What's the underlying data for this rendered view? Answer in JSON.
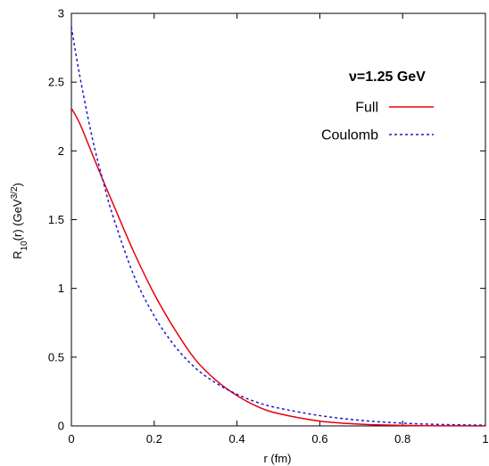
{
  "chart_data": {
    "type": "line",
    "title": "",
    "annotation": "ν=1.25 GeV",
    "xlabel": "r (fm)",
    "ylabel": {
      "main": "R",
      "sub": "10",
      "mid": "(r) (GeV",
      "sup": "3/2",
      "end": ")"
    },
    "xlim": [
      0,
      1
    ],
    "ylim": [
      0,
      3
    ],
    "xticks": [
      "0",
      "0.2",
      "0.4",
      "0.6",
      "0.8",
      "1"
    ],
    "yticks": [
      "0",
      "0.5",
      "1",
      "1.5",
      "2",
      "2.5",
      "3"
    ],
    "grid": false,
    "legend_position": "top-right",
    "series": [
      {
        "name": "Full",
        "color": "#e8000b",
        "dash": "solid",
        "x": [
          0,
          0.02,
          0.05,
          0.08,
          0.1,
          0.15,
          0.2,
          0.25,
          0.3,
          0.35,
          0.4,
          0.45,
          0.5,
          0.6,
          0.7,
          0.8,
          0.9,
          1.0
        ],
        "y": [
          2.31,
          2.2,
          1.98,
          1.76,
          1.62,
          1.27,
          0.96,
          0.7,
          0.48,
          0.33,
          0.22,
          0.14,
          0.09,
          0.035,
          0.012,
          0.004,
          0.001,
          0.0
        ]
      },
      {
        "name": "Coulomb",
        "color": "#1a1acc",
        "dash": "dashed",
        "x": [
          0,
          0.02,
          0.05,
          0.08,
          0.1,
          0.15,
          0.2,
          0.25,
          0.3,
          0.35,
          0.4,
          0.45,
          0.5,
          0.6,
          0.7,
          0.8,
          0.9,
          1.0
        ],
        "y": [
          2.9,
          2.55,
          2.1,
          1.74,
          1.53,
          1.1,
          0.8,
          0.58,
          0.42,
          0.31,
          0.23,
          0.17,
          0.13,
          0.075,
          0.04,
          0.02,
          0.01,
          0.005
        ]
      }
    ]
  }
}
